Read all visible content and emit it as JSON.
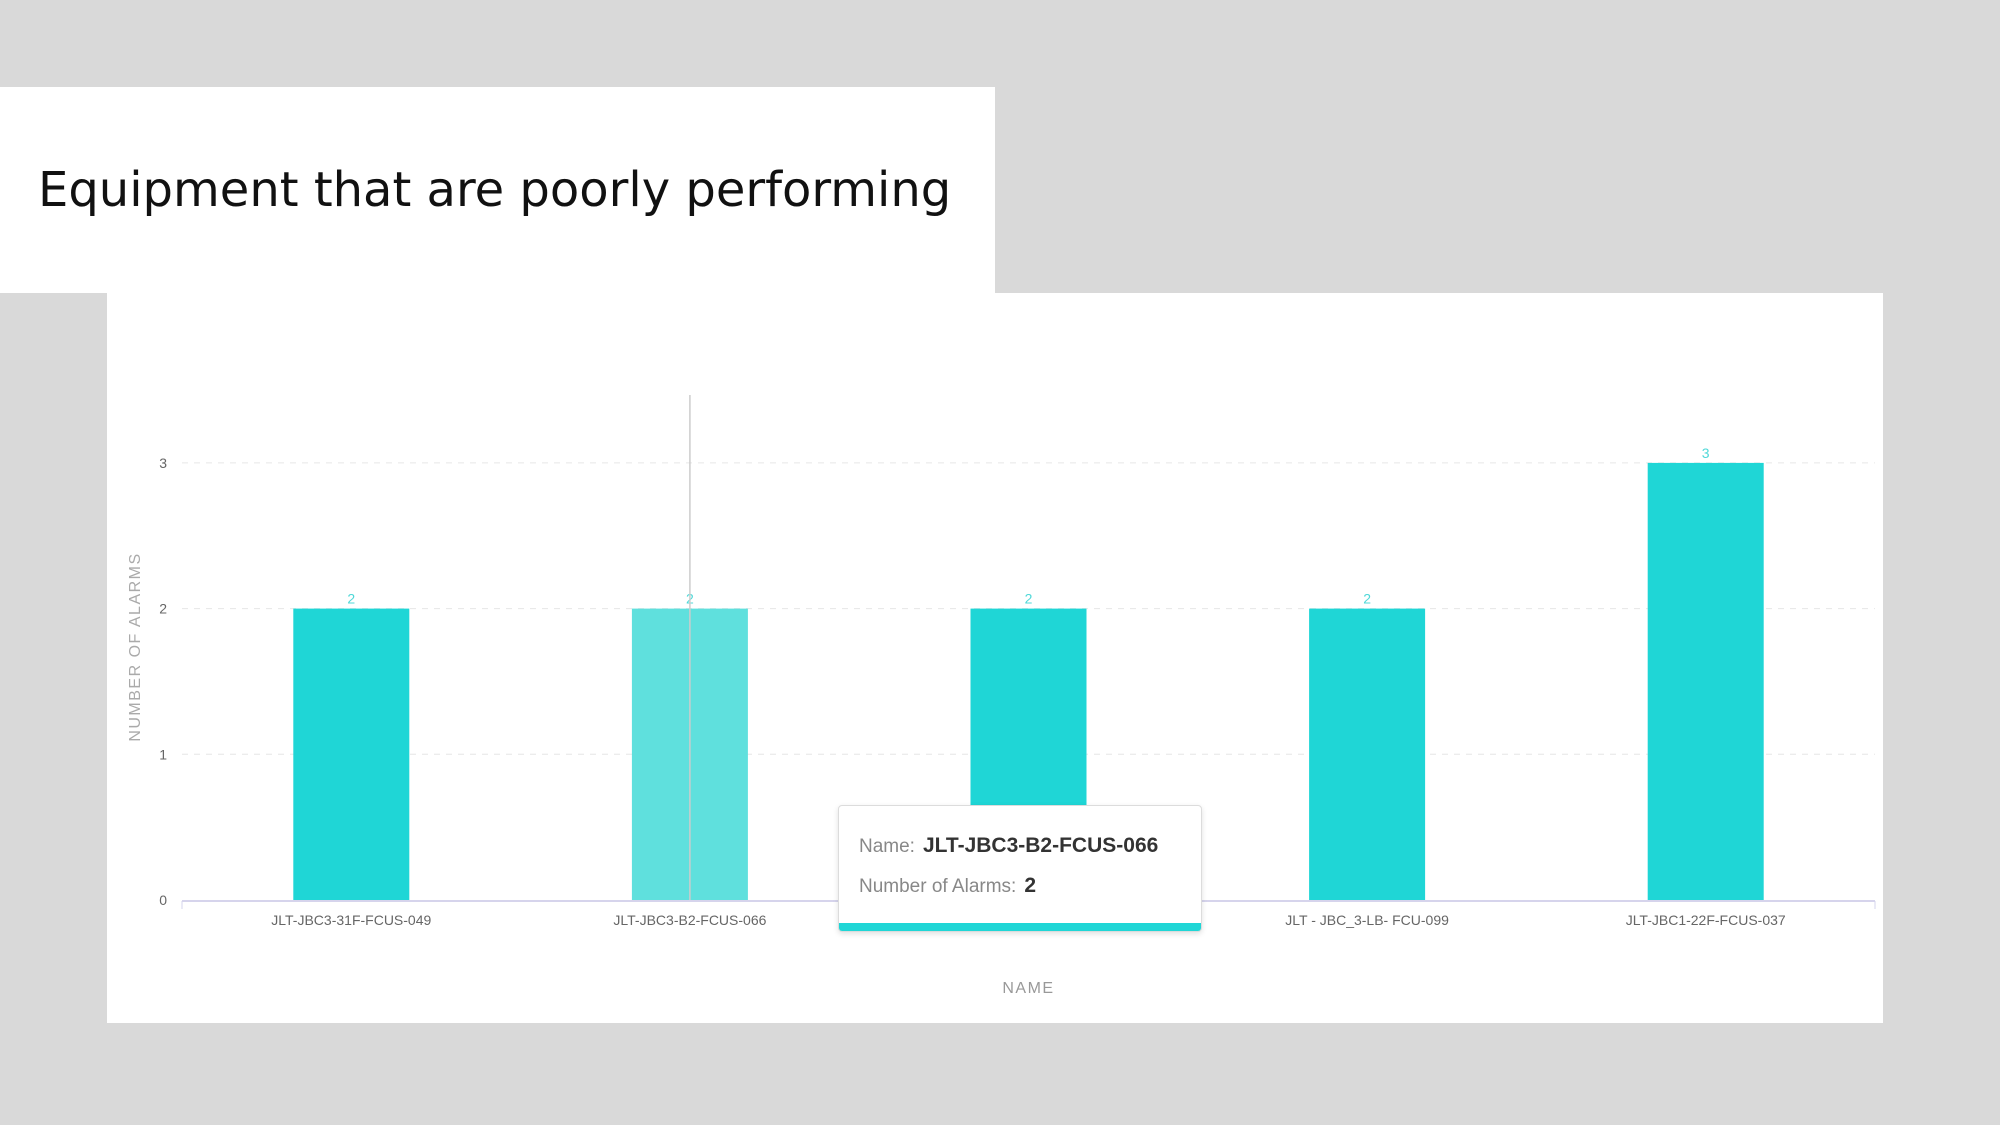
{
  "slide": {
    "heading": "Equipment that are poorly performing"
  },
  "tooltip": {
    "name_label": "Name:",
    "name_value": "JLT-JBC3-B2-FCUS-066",
    "alarms_label": "Number of Alarms:",
    "alarms_value": "2",
    "accent_color": "#1fd6d6"
  },
  "chart_data": {
    "type": "bar",
    "categories": [
      "JLT-JBC3-31F-FCUS-049",
      "JLT-JBC3-B2-FCUS-066",
      "",
      "JLT - JBC_3-LB- FCU-099",
      "JLT-JBC1-22F-FCUS-037"
    ],
    "values": [
      2,
      2,
      2,
      2,
      3
    ],
    "data_labels": [
      "2",
      "2",
      "2",
      "2",
      "3"
    ],
    "xlabel": "NAME",
    "ylabel": "NUMBER OF ALARMS",
    "yticks": [
      "0",
      "1",
      "2",
      "3"
    ],
    "ylim": [
      0,
      3.45
    ],
    "grid": true,
    "highlighted_index": 1,
    "bar_color": "#1fd6d6",
    "highlight_color": "#5fe0dd",
    "label_color": "#4fd8d8"
  }
}
